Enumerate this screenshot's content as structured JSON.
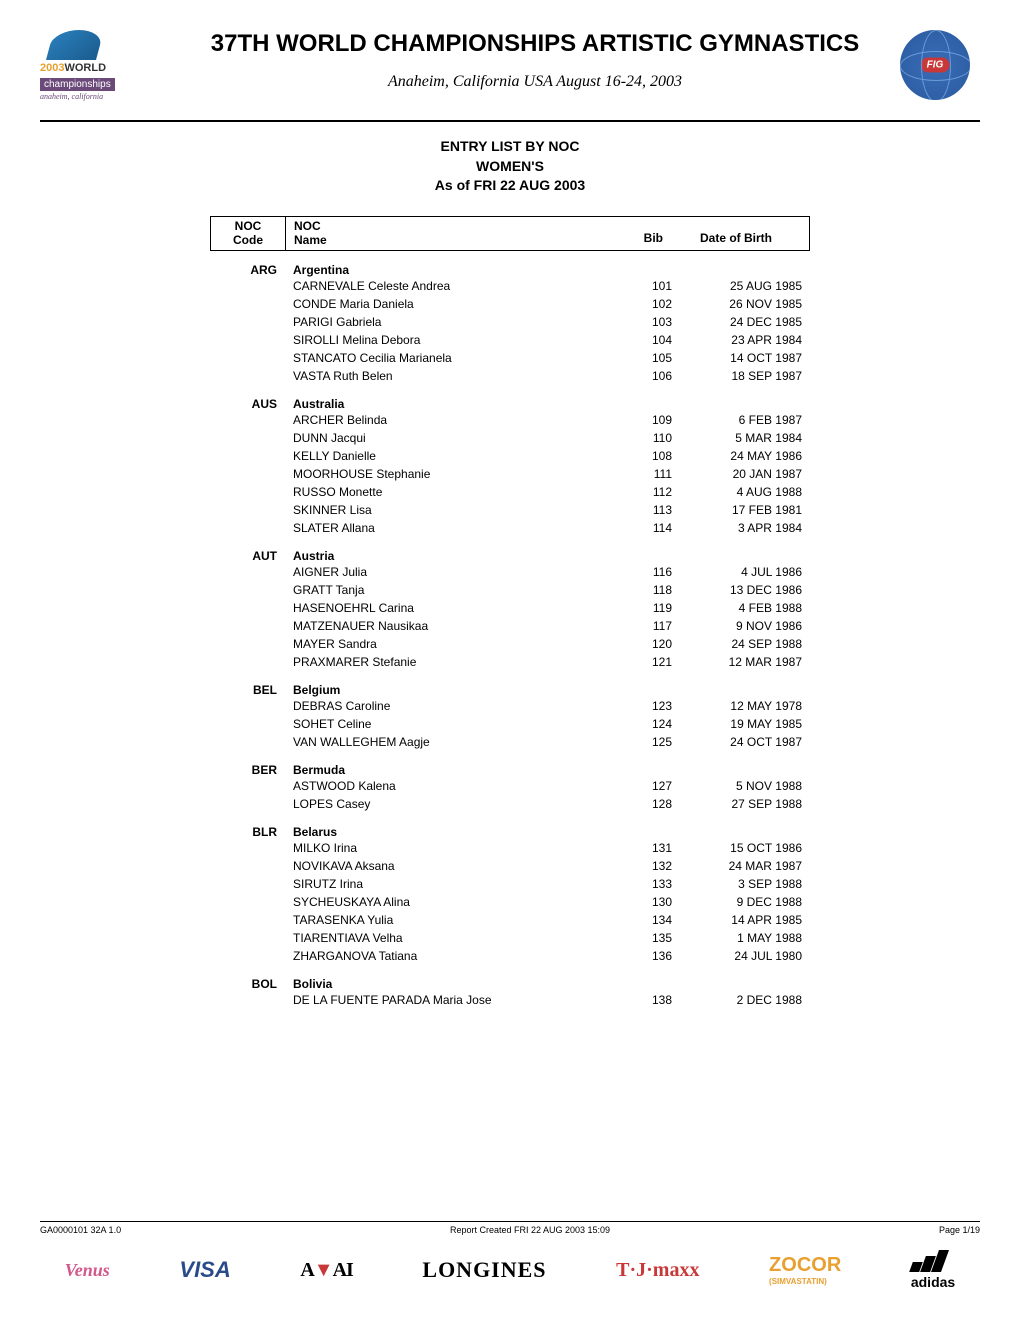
{
  "header": {
    "title": "37TH WORLD CHAMPIONSHIPS ARTISTIC GYMNASTICS",
    "subtitle": "Anaheim, California USA August 16-24, 2003",
    "logo_year": "2003",
    "logo_world": "WORLD",
    "logo_champ": "championships",
    "logo_sub": "anaheim, california",
    "fig_badge": "FIG"
  },
  "doc": {
    "title1": "ENTRY LIST BY NOC",
    "title2": "WOMEN'S",
    "title3": "As of FRI 22 AUG 2003"
  },
  "table_headers": {
    "noc": "NOC",
    "code": "Code",
    "name": "Name",
    "bib": "Bib",
    "dob": "Date of Birth"
  },
  "countries": [
    {
      "code": "ARG",
      "name": "Argentina",
      "athletes": [
        {
          "name": "CARNEVALE Celeste Andrea",
          "bib": "101",
          "dob": "25 AUG 1985"
        },
        {
          "name": "CONDE Maria Daniela",
          "bib": "102",
          "dob": "26 NOV 1985"
        },
        {
          "name": "PARIGI Gabriela",
          "bib": "103",
          "dob": "24 DEC 1985"
        },
        {
          "name": "SIROLLI Melina Debora",
          "bib": "104",
          "dob": "23 APR 1984"
        },
        {
          "name": "STANCATO Cecilia Marianela",
          "bib": "105",
          "dob": "14 OCT 1987"
        },
        {
          "name": "VASTA Ruth Belen",
          "bib": "106",
          "dob": "18 SEP 1987"
        }
      ]
    },
    {
      "code": "AUS",
      "name": "Australia",
      "athletes": [
        {
          "name": "ARCHER Belinda",
          "bib": "109",
          "dob": "6 FEB 1987"
        },
        {
          "name": "DUNN Jacqui",
          "bib": "110",
          "dob": "5 MAR 1984"
        },
        {
          "name": "KELLY Danielle",
          "bib": "108",
          "dob": "24 MAY 1986"
        },
        {
          "name": "MOORHOUSE Stephanie",
          "bib": "111",
          "dob": "20 JAN 1987"
        },
        {
          "name": "RUSSO Monette",
          "bib": "112",
          "dob": "4 AUG 1988"
        },
        {
          "name": "SKINNER Lisa",
          "bib": "113",
          "dob": "17 FEB 1981"
        },
        {
          "name": "SLATER Allana",
          "bib": "114",
          "dob": "3 APR 1984"
        }
      ]
    },
    {
      "code": "AUT",
      "name": "Austria",
      "athletes": [
        {
          "name": "AIGNER Julia",
          "bib": "116",
          "dob": "4 JUL 1986"
        },
        {
          "name": "GRATT Tanja",
          "bib": "118",
          "dob": "13 DEC 1986"
        },
        {
          "name": "HASENOEHRL Carina",
          "bib": "119",
          "dob": "4 FEB 1988"
        },
        {
          "name": "MATZENAUER Nausikaa",
          "bib": "117",
          "dob": "9 NOV 1986"
        },
        {
          "name": "MAYER Sandra",
          "bib": "120",
          "dob": "24 SEP 1988"
        },
        {
          "name": "PRAXMARER Stefanie",
          "bib": "121",
          "dob": "12 MAR 1987"
        }
      ]
    },
    {
      "code": "BEL",
      "name": "Belgium",
      "athletes": [
        {
          "name": "DEBRAS Caroline",
          "bib": "123",
          "dob": "12 MAY 1978"
        },
        {
          "name": "SOHET Celine",
          "bib": "124",
          "dob": "19 MAY 1985"
        },
        {
          "name": "VAN WALLEGHEM Aagje",
          "bib": "125",
          "dob": "24 OCT 1987"
        }
      ]
    },
    {
      "code": "BER",
      "name": "Bermuda",
      "athletes": [
        {
          "name": "ASTWOOD Kalena",
          "bib": "127",
          "dob": "5 NOV 1988"
        },
        {
          "name": "LOPES Casey",
          "bib": "128",
          "dob": "27 SEP 1988"
        }
      ]
    },
    {
      "code": "BLR",
      "name": "Belarus",
      "athletes": [
        {
          "name": "MILKO Irina",
          "bib": "131",
          "dob": "15 OCT 1986"
        },
        {
          "name": "NOVIKAVA Aksana",
          "bib": "132",
          "dob": "24 MAR 1987"
        },
        {
          "name": "SIRUTZ Irina",
          "bib": "133",
          "dob": "3 SEP 1988"
        },
        {
          "name": "SYCHEUSKAYA Alina",
          "bib": "130",
          "dob": "9 DEC 1988"
        },
        {
          "name": "TARASENKA Yulia",
          "bib": "134",
          "dob": "14 APR 1985"
        },
        {
          "name": "TIARENTIAVA Velha",
          "bib": "135",
          "dob": "1 MAY 1988"
        },
        {
          "name": "ZHARGANOVA Tatiana",
          "bib": "136",
          "dob": "24 JUL 1980"
        }
      ]
    },
    {
      "code": "BOL",
      "name": "Bolivia",
      "athletes": [
        {
          "name": "DE LA FUENTE PARADA Maria Jose",
          "bib": "138",
          "dob": "2 DEC 1988"
        }
      ]
    }
  ],
  "footer": {
    "left": "GA0000101 32A 1.0",
    "center": "Report Created  FRI 22 AUG 2003 15:09",
    "right": "Page 1/19"
  },
  "sponsors": {
    "venus": "Venus",
    "visa": "VISA",
    "aai": "AAI",
    "longines": "LONGINES",
    "tjmaxx": "T·J·maxx",
    "zocor": "ZOCOR",
    "zocor_sub": "(SIMVASTATIN)",
    "adidas": "adidas"
  }
}
